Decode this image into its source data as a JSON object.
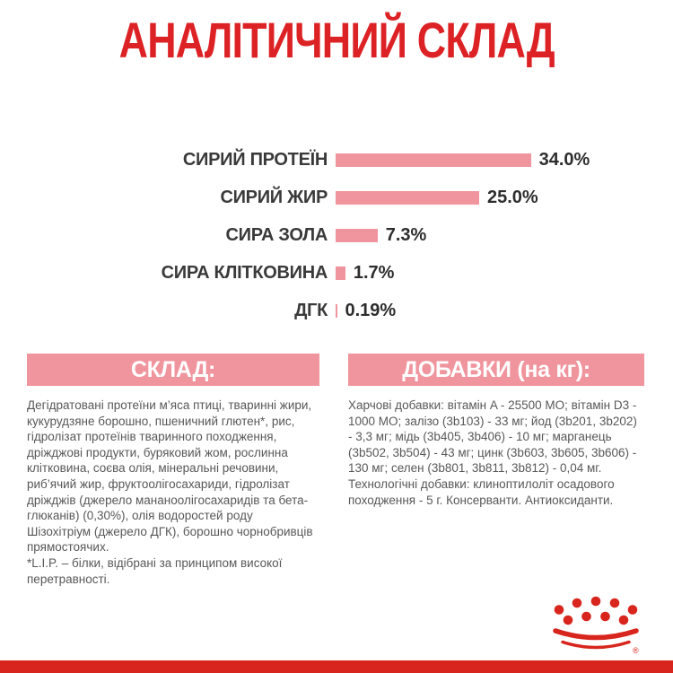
{
  "title": "АНАЛІТИЧНИЙ СКЛАД",
  "colors": {
    "brand_red": "#DD2226",
    "pink": "#F0949D",
    "label_dark": "#3A3A3B",
    "body_gray": "#58585A",
    "footer_red": "#D8251D"
  },
  "chart_data": {
    "type": "bar",
    "orientation": "horizontal",
    "title": "АНАЛІТИЧНИЙ СКЛАД",
    "categories": [
      "СИРИЙ ПРОТЕЇН",
      "СИРИЙ ЖИР",
      "СИРА ЗОЛА",
      "СИРА КЛІТКОВИНА",
      "ДГК"
    ],
    "values": [
      34.0,
      25.0,
      7.3,
      1.7,
      0.19
    ],
    "value_labels": [
      "34.0%",
      "25.0%",
      "7.3%",
      "1.7%",
      "0.19%"
    ],
    "unit": "%",
    "bar_color": "#F0949D",
    "xlim": [
      0,
      36
    ],
    "grid": false,
    "legend": false
  },
  "sections": {
    "composition": {
      "header": "СКЛАД:",
      "body": "Дегідратовані протеїни м’яса птиці, тваринні жири, кукурудзяне борошно, пшеничний глютен*, рис, гідролізат протеїнів тваринного походження, дріжджові продукти, буряковий жом, рослинна клітковина, соєва олія, мінеральні речовини, риб’ячий жир, фруктоолігосахариди, гідролізат дріжджів (джерело мананоолігосахаридів та бета-глюканів) (0,30%), олія водоростей роду Шізохітріум (джерело ДГК), борошно чорнобривців прямостоячих.",
      "footnote": "*L.I.P. – білки, відібрані за принципом високої перетравності."
    },
    "additives": {
      "header": "ДОБАВКИ (на кг):",
      "body": "Харчові добавки: вітамін A - 25500 МО; вітамін D3 - 1000 МО; залізо (3b103) - 33 мг; йод (3b201, 3b202) - 3,3 мг; мідь (3b405, 3b406) - 10 мг; марганець (3b502, 3b504) - 43 мг; цинк (3b603, 3b605, 3b606) - 130 мг; селен (3b801, 3b811, 3b812) - 0,04 мг. Технологічні добавки: клиноптилоліт осадового походження - 5 г. Консерванти. Антиоксиданти."
    }
  },
  "footer": {
    "logo": "royal-canin-crown"
  }
}
